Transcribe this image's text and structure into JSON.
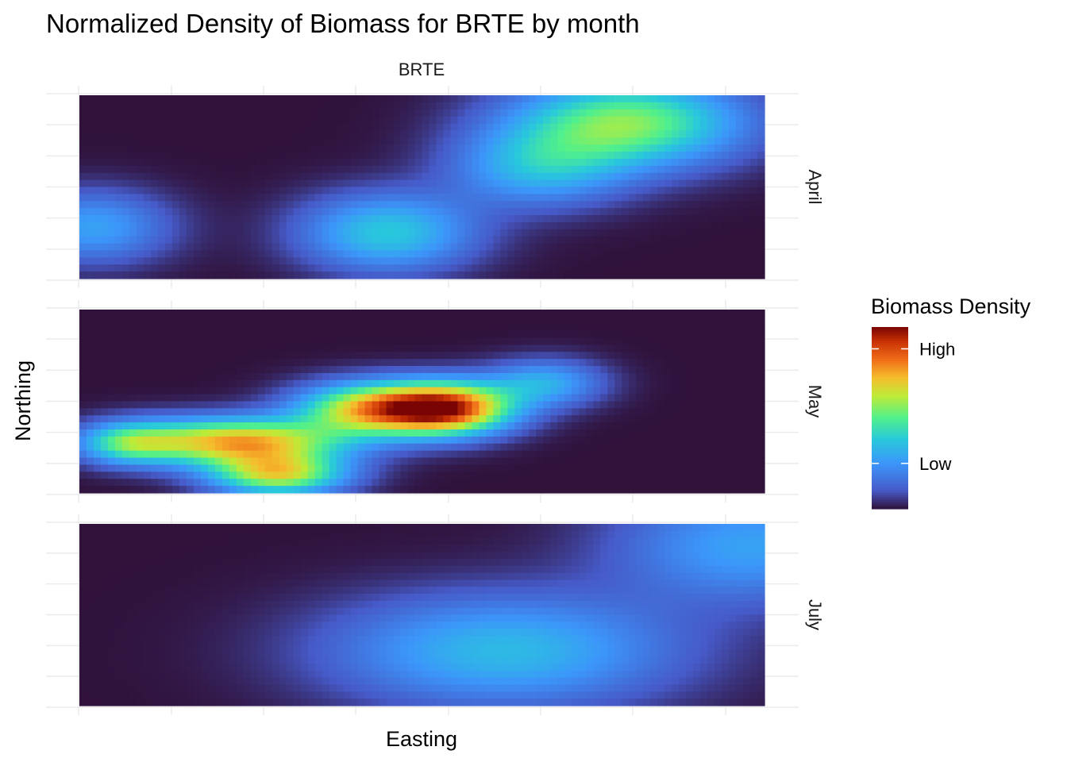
{
  "chart_data": {
    "type": "heatmap",
    "title": "Normalized Density of Biomass for BRTE by month",
    "strip_label": "BRTE",
    "xlabel": "Easting",
    "ylabel": "Northing",
    "x_range": [
      0,
      1
    ],
    "y_range": [
      0,
      1
    ],
    "value_range": [
      0,
      1
    ],
    "grid": true,
    "tick_labels_shown": false,
    "legend": {
      "title": "Biomass Density",
      "placement": "right",
      "labels": [
        {
          "text": "Low",
          "value": 0.25
        },
        {
          "text": "High",
          "value": 0.88
        }
      ],
      "colormap": "turbo"
    },
    "panels": [
      {
        "name": "April",
        "background": 0.0,
        "hotspots": [
          {
            "x": 0.8,
            "y": 0.85,
            "sx": 0.12,
            "sy": 0.17,
            "peak": 0.55
          },
          {
            "x": 0.67,
            "y": 0.6,
            "sx": 0.09,
            "sy": 0.15,
            "peak": 0.3
          },
          {
            "x": 0.45,
            "y": 0.25,
            "sx": 0.09,
            "sy": 0.15,
            "peak": 0.38
          },
          {
            "x": 0.02,
            "y": 0.28,
            "sx": 0.08,
            "sy": 0.14,
            "peak": 0.28
          }
        ]
      },
      {
        "name": "May",
        "background": 0.0,
        "hotspots": [
          {
            "x": 0.53,
            "y": 0.46,
            "sx": 0.07,
            "sy": 0.1,
            "peak": 0.97
          },
          {
            "x": 0.41,
            "y": 0.46,
            "sx": 0.07,
            "sy": 0.1,
            "peak": 0.55
          },
          {
            "x": 0.23,
            "y": 0.28,
            "sx": 0.11,
            "sy": 0.09,
            "peak": 0.74
          },
          {
            "x": 0.29,
            "y": 0.1,
            "sx": 0.07,
            "sy": 0.08,
            "peak": 0.62
          },
          {
            "x": 0.07,
            "y": 0.27,
            "sx": 0.05,
            "sy": 0.08,
            "peak": 0.35
          },
          {
            "x": 0.68,
            "y": 0.6,
            "sx": 0.06,
            "sy": 0.09,
            "peak": 0.3
          }
        ]
      },
      {
        "name": "July",
        "background": 0.0,
        "hotspots": [
          {
            "x": 0.62,
            "y": 0.3,
            "sx": 0.18,
            "sy": 0.22,
            "peak": 0.34
          },
          {
            "x": 0.98,
            "y": 0.88,
            "sx": 0.14,
            "sy": 0.22,
            "peak": 0.28
          }
        ]
      }
    ]
  }
}
